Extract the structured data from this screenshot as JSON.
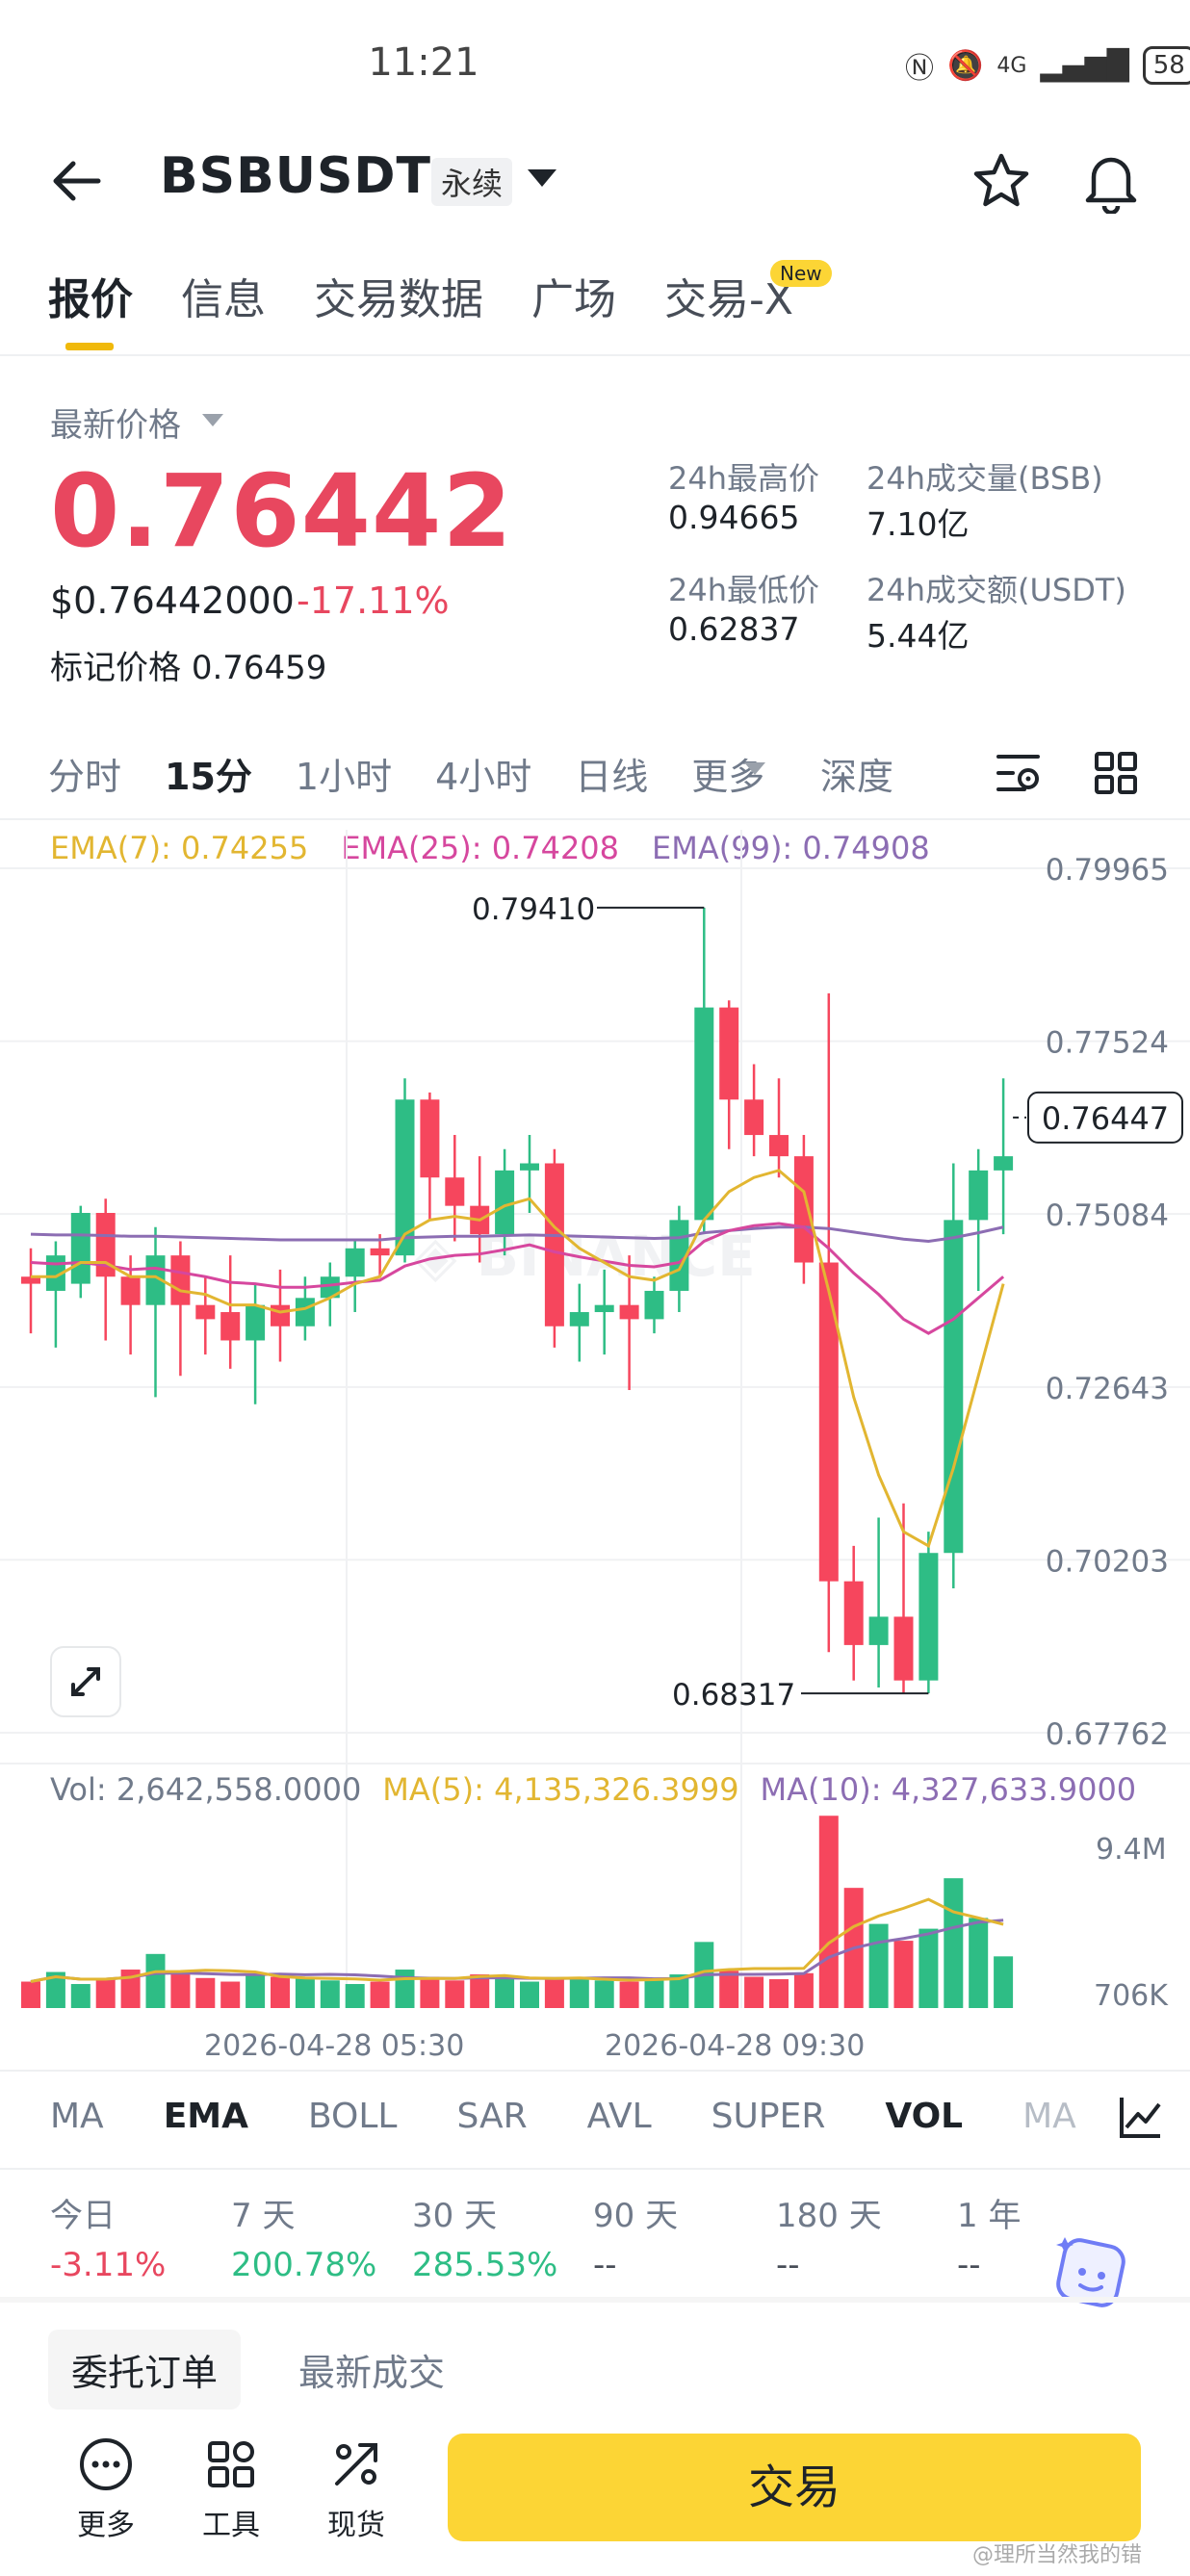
{
  "status_bar": {
    "time": "11:21",
    "network": "4G",
    "battery": "58"
  },
  "header": {
    "symbol": "BSBUSDT",
    "contract_type": "永续"
  },
  "tabs": [
    {
      "label": "报价",
      "active": true
    },
    {
      "label": "信息"
    },
    {
      "label": "交易数据"
    },
    {
      "label": "广场"
    },
    {
      "label": "交易-X",
      "badge": "New"
    }
  ],
  "price_panel": {
    "latest_label": "最新价格",
    "last_price": "0.76442",
    "usd_price": "$0.76442000",
    "change_pct": "-17.11%",
    "mark_label": "标记价格",
    "mark_price": "0.76459",
    "stats": [
      {
        "label": "24h最高价",
        "value": "0.94665"
      },
      {
        "label": "24h成交量(BSB)",
        "value": "7.10亿"
      },
      {
        "label": "24h最低价",
        "value": "0.62837"
      },
      {
        "label": "24h成交额(USDT)",
        "value": "5.44亿"
      }
    ]
  },
  "intervals": [
    "分时",
    "15分",
    "1小时",
    "4小时",
    "日线",
    "更多"
  ],
  "active_interval": "15分",
  "depth_label": "深度",
  "ema": {
    "ema7": "EMA(7): 0.74255",
    "ema25": "EMA(25): 0.74208",
    "ema99": "EMA(99): 0.74908"
  },
  "colors": {
    "up": "#2ebd85",
    "down": "#f6465d",
    "ema7": "#e2b631",
    "ema25": "#d6479e",
    "ema99": "#8c6db3",
    "accent": "#fcd535"
  },
  "chart_data": {
    "type": "candlestick",
    "y_ticks": [
      "0.79965",
      "0.77524",
      "0.75084",
      "0.72643",
      "0.70203",
      "0.67762"
    ],
    "ylim": [
      0.67762,
      0.79965
    ],
    "current_price_label": "0.76447",
    "high_marker": "0.79410",
    "low_marker": "0.68317",
    "candles": [
      {
        "o": 0.742,
        "c": 0.741,
        "h": 0.746,
        "l": 0.734
      },
      {
        "o": 0.74,
        "c": 0.745,
        "h": 0.747,
        "l": 0.732
      },
      {
        "o": 0.741,
        "c": 0.751,
        "h": 0.752,
        "l": 0.739
      },
      {
        "o": 0.751,
        "c": 0.742,
        "h": 0.753,
        "l": 0.733
      },
      {
        "o": 0.742,
        "c": 0.738,
        "h": 0.745,
        "l": 0.731
      },
      {
        "o": 0.738,
        "c": 0.745,
        "h": 0.749,
        "l": 0.725
      },
      {
        "o": 0.745,
        "c": 0.738,
        "h": 0.747,
        "l": 0.728
      },
      {
        "o": 0.738,
        "c": 0.736,
        "h": 0.742,
        "l": 0.731
      },
      {
        "o": 0.737,
        "c": 0.733,
        "h": 0.745,
        "l": 0.729
      },
      {
        "o": 0.733,
        "c": 0.738,
        "h": 0.741,
        "l": 0.724
      },
      {
        "o": 0.738,
        "c": 0.735,
        "h": 0.743,
        "l": 0.73
      },
      {
        "o": 0.735,
        "c": 0.739,
        "h": 0.742,
        "l": 0.733
      },
      {
        "o": 0.739,
        "c": 0.742,
        "h": 0.744,
        "l": 0.735
      },
      {
        "o": 0.742,
        "c": 0.746,
        "h": 0.747,
        "l": 0.737
      },
      {
        "o": 0.746,
        "c": 0.745,
        "h": 0.748,
        "l": 0.742
      },
      {
        "o": 0.745,
        "c": 0.767,
        "h": 0.77,
        "l": 0.744
      },
      {
        "o": 0.767,
        "c": 0.756,
        "h": 0.768,
        "l": 0.75
      },
      {
        "o": 0.756,
        "c": 0.752,
        "h": 0.762,
        "l": 0.747
      },
      {
        "o": 0.752,
        "c": 0.748,
        "h": 0.759,
        "l": 0.744
      },
      {
        "o": 0.748,
        "c": 0.757,
        "h": 0.76,
        "l": 0.745
      },
      {
        "o": 0.757,
        "c": 0.758,
        "h": 0.762,
        "l": 0.751
      },
      {
        "o": 0.758,
        "c": 0.735,
        "h": 0.76,
        "l": 0.732
      },
      {
        "o": 0.735,
        "c": 0.737,
        "h": 0.741,
        "l": 0.73
      },
      {
        "o": 0.737,
        "c": 0.738,
        "h": 0.743,
        "l": 0.731
      },
      {
        "o": 0.738,
        "c": 0.736,
        "h": 0.745,
        "l": 0.726
      },
      {
        "o": 0.736,
        "c": 0.74,
        "h": 0.742,
        "l": 0.734
      },
      {
        "o": 0.74,
        "c": 0.75,
        "h": 0.752,
        "l": 0.737
      },
      {
        "o": 0.75,
        "c": 0.78,
        "h": 0.7941,
        "l": 0.748
      },
      {
        "o": 0.78,
        "c": 0.767,
        "h": 0.781,
        "l": 0.76
      },
      {
        "o": 0.767,
        "c": 0.762,
        "h": 0.772,
        "l": 0.759
      },
      {
        "o": 0.762,
        "c": 0.759,
        "h": 0.77,
        "l": 0.756
      },
      {
        "o": 0.759,
        "c": 0.744,
        "h": 0.762,
        "l": 0.741
      },
      {
        "o": 0.744,
        "c": 0.699,
        "h": 0.782,
        "l": 0.689
      },
      {
        "o": 0.699,
        "c": 0.69,
        "h": 0.704,
        "l": 0.685
      },
      {
        "o": 0.69,
        "c": 0.694,
        "h": 0.708,
        "l": 0.684
      },
      {
        "o": 0.694,
        "c": 0.685,
        "h": 0.71,
        "l": 0.6832
      },
      {
        "o": 0.685,
        "c": 0.703,
        "h": 0.706,
        "l": 0.6832
      },
      {
        "o": 0.703,
        "c": 0.75,
        "h": 0.758,
        "l": 0.698
      },
      {
        "o": 0.75,
        "c": 0.757,
        "h": 0.76,
        "l": 0.74
      },
      {
        "o": 0.757,
        "c": 0.759,
        "h": 0.77,
        "l": 0.748
      }
    ],
    "ema7": [
      0.742,
      0.742,
      0.744,
      0.744,
      0.742,
      0.742,
      0.74,
      0.7395,
      0.738,
      0.738,
      0.737,
      0.7375,
      0.739,
      0.741,
      0.742,
      0.748,
      0.75,
      0.7505,
      0.75,
      0.752,
      0.753,
      0.749,
      0.746,
      0.744,
      0.742,
      0.7415,
      0.743,
      0.75,
      0.754,
      0.756,
      0.757,
      0.754,
      0.74,
      0.725,
      0.714,
      0.706,
      0.704,
      0.715,
      0.728,
      0.741
    ],
    "ema25": [
      0.744,
      0.7438,
      0.744,
      0.7436,
      0.743,
      0.7432,
      0.7426,
      0.742,
      0.7412,
      0.741,
      0.7405,
      0.7405,
      0.7408,
      0.7412,
      0.7415,
      0.7435,
      0.7445,
      0.745,
      0.7452,
      0.7458,
      0.7465,
      0.7455,
      0.7448,
      0.7442,
      0.7436,
      0.7434,
      0.744,
      0.747,
      0.7485,
      0.7492,
      0.7495,
      0.749,
      0.746,
      0.7425,
      0.7395,
      0.736,
      0.734,
      0.736,
      0.739,
      0.742
    ],
    "ema99": [
      0.748,
      0.7479,
      0.7479,
      0.7478,
      0.7477,
      0.7477,
      0.7476,
      0.7475,
      0.7474,
      0.7473,
      0.7472,
      0.7472,
      0.7472,
      0.7472,
      0.7472,
      0.7475,
      0.7476,
      0.7477,
      0.7477,
      0.7478,
      0.7479,
      0.7478,
      0.7477,
      0.7476,
      0.7475,
      0.7474,
      0.7475,
      0.7482,
      0.7485,
      0.7488,
      0.749,
      0.749,
      0.7488,
      0.7483,
      0.7478,
      0.7473,
      0.747,
      0.7475,
      0.7482,
      0.749
    ]
  },
  "volume": {
    "vol_label": "Vol: 2,642,558.0000",
    "ma5_label": "MA(5): 4,135,326.3999",
    "ma10_label": "MA(10): 4,327,633.9000",
    "top_tick": "9.4M",
    "bottom_tick": "706K",
    "values": [
      2.2,
      3.0,
      2.0,
      2.4,
      3.2,
      4.5,
      3.1,
      2.5,
      2.2,
      2.7,
      2.6,
      2.5,
      2.3,
      2.0,
      2.2,
      3.2,
      2.6,
      2.3,
      2.8,
      2.6,
      2.2,
      2.4,
      2.5,
      2.3,
      2.2,
      2.4,
      2.8,
      5.5,
      3.1,
      2.6,
      2.4,
      2.9,
      16.0,
      10.0,
      7.0,
      5.6,
      6.6,
      10.8,
      7.5,
      4.3
    ]
  },
  "time_axis": [
    "2026-04-28 05:30",
    "2026-04-28 09:30"
  ],
  "indicator_tabs": [
    "MA",
    "EMA",
    "BOLL",
    "SAR",
    "AVL",
    "SUPER",
    "VOL",
    "MA"
  ],
  "performance": [
    {
      "label": "今日",
      "value": "-3.11%",
      "dir": "down"
    },
    {
      "label": "7 天",
      "value": "200.78%",
      "dir": "up"
    },
    {
      "label": "30 天",
      "value": "285.53%",
      "dir": "up"
    },
    {
      "label": "90 天",
      "value": "--"
    },
    {
      "label": "180 天",
      "value": "--"
    },
    {
      "label": "1 年",
      "value": "--"
    }
  ],
  "orders": {
    "open_orders": "委托订单",
    "latest_trades": "最新成交"
  },
  "bottom_bar": {
    "more": "更多",
    "tools": "工具",
    "spot": "现货",
    "trade": "交易"
  },
  "watermark": "@理所当然我的错"
}
